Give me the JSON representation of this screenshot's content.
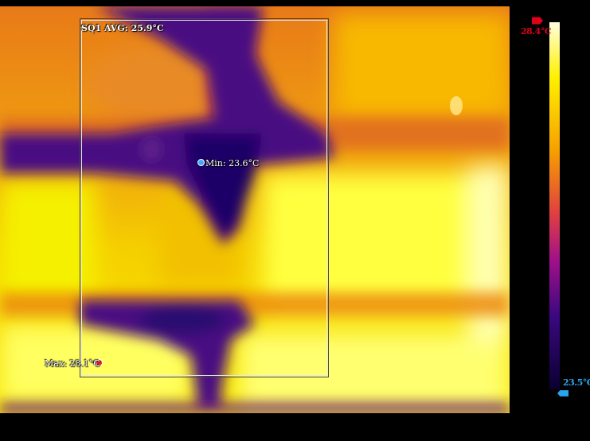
{
  "measurements": {
    "roi_label": "SQ1 AVG: 25.9°C",
    "min_label": "Min: 23.6°C",
    "max_label": "Max: 28.1°C"
  },
  "scale": {
    "max_label": "28.4°C",
    "min_label": "23.5°C",
    "max_color": "#e0001a",
    "min_color": "#2aa4f0"
  },
  "palette": {
    "marker_min": "#3fa9f5",
    "marker_max": "#e8202a",
    "hot": "#ffff7a",
    "warm": "#f2e000",
    "mid": "#f08a00",
    "cool": "#c8303a",
    "cold": "#5a1486",
    "coldest": "#22006a"
  }
}
